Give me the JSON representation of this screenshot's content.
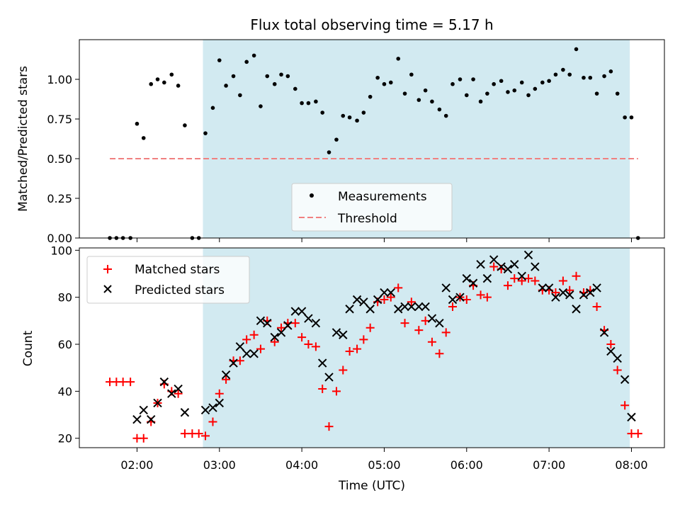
{
  "chart_data": [
    {
      "type": "scatter",
      "title": "Flux total observing time = 5.17 h",
      "ylabel": "Matched/Predicted stars",
      "xlabel": "",
      "x_unit": "hours UTC",
      "xlim": [
        1.3,
        8.4
      ],
      "ylim": [
        0,
        1.25
      ],
      "yticks": [
        "0.00",
        "0.25",
        "0.50",
        "0.75",
        "1.00"
      ],
      "ytick_values": [
        0,
        0.25,
        0.5,
        0.75,
        1.0
      ],
      "shaded_span": [
        2.8,
        7.98
      ],
      "shaded_color": "#add8e6",
      "legend_position": "lower-center",
      "threshold": {
        "name": "Threshold",
        "y": 0.5,
        "x_range": [
          1.67,
          8.08
        ],
        "color": "#f08080"
      },
      "series": [
        {
          "name": "Measurements",
          "color": "#000000",
          "points": [
            [
              1.67,
              0.0
            ],
            [
              1.75,
              0.0
            ],
            [
              1.83,
              0.0
            ],
            [
              1.92,
              0.0
            ],
            [
              2.0,
              0.72
            ],
            [
              2.08,
              0.63
            ],
            [
              2.17,
              0.97
            ],
            [
              2.25,
              1.0
            ],
            [
              2.33,
              0.98
            ],
            [
              2.42,
              1.03
            ],
            [
              2.5,
              0.96
            ],
            [
              2.58,
              0.71
            ],
            [
              2.67,
              0.0
            ],
            [
              2.75,
              0.0
            ],
            [
              2.83,
              0.66
            ],
            [
              2.92,
              0.82
            ],
            [
              3.0,
              1.12
            ],
            [
              3.08,
              0.96
            ],
            [
              3.17,
              1.02
            ],
            [
              3.25,
              0.9
            ],
            [
              3.33,
              1.11
            ],
            [
              3.42,
              1.15
            ],
            [
              3.5,
              0.83
            ],
            [
              3.58,
              1.02
            ],
            [
              3.67,
              0.97
            ],
            [
              3.75,
              1.03
            ],
            [
              3.83,
              1.02
            ],
            [
              3.92,
              0.94
            ],
            [
              4.0,
              0.85
            ],
            [
              4.08,
              0.85
            ],
            [
              4.17,
              0.86
            ],
            [
              4.25,
              0.79
            ],
            [
              4.33,
              0.54
            ],
            [
              4.42,
              0.62
            ],
            [
              4.5,
              0.77
            ],
            [
              4.58,
              0.76
            ],
            [
              4.67,
              0.74
            ],
            [
              4.75,
              0.79
            ],
            [
              4.83,
              0.89
            ],
            [
              4.92,
              1.01
            ],
            [
              5.0,
              0.97
            ],
            [
              5.08,
              0.98
            ],
            [
              5.17,
              1.13
            ],
            [
              5.25,
              0.91
            ],
            [
              5.33,
              1.03
            ],
            [
              5.42,
              0.87
            ],
            [
              5.5,
              0.93
            ],
            [
              5.58,
              0.86
            ],
            [
              5.67,
              0.81
            ],
            [
              5.75,
              0.77
            ],
            [
              5.83,
              0.97
            ],
            [
              5.92,
              1.0
            ],
            [
              6.0,
              0.9
            ],
            [
              6.08,
              1.0
            ],
            [
              6.17,
              0.86
            ],
            [
              6.25,
              0.91
            ],
            [
              6.33,
              0.97
            ],
            [
              6.42,
              0.99
            ],
            [
              6.5,
              0.92
            ],
            [
              6.58,
              0.93
            ],
            [
              6.67,
              0.98
            ],
            [
              6.75,
              0.9
            ],
            [
              6.83,
              0.94
            ],
            [
              6.92,
              0.98
            ],
            [
              7.0,
              0.99
            ],
            [
              7.08,
              1.03
            ],
            [
              7.17,
              1.06
            ],
            [
              7.25,
              1.03
            ],
            [
              7.33,
              1.19
            ],
            [
              7.42,
              1.01
            ],
            [
              7.5,
              1.01
            ],
            [
              7.58,
              0.91
            ],
            [
              7.67,
              1.02
            ],
            [
              7.75,
              1.05
            ],
            [
              7.83,
              0.91
            ],
            [
              7.92,
              0.76
            ],
            [
              8.0,
              0.76
            ],
            [
              8.08,
              0.0
            ]
          ]
        }
      ]
    },
    {
      "type": "scatter",
      "title": "",
      "ylabel": "Count",
      "xlabel": "Time (UTC)",
      "x_unit": "hours UTC",
      "xlim": [
        1.3,
        8.4
      ],
      "ylim": [
        16,
        101
      ],
      "yticks": [
        "20",
        "40",
        "60",
        "80",
        "100"
      ],
      "ytick_values": [
        20,
        40,
        60,
        80,
        100
      ],
      "xticks": [
        "02:00",
        "03:00",
        "04:00",
        "05:00",
        "06:00",
        "07:00",
        "08:00"
      ],
      "xtick_values": [
        2,
        3,
        4,
        5,
        6,
        7,
        8
      ],
      "shaded_span": [
        2.8,
        7.98
      ],
      "shaded_color": "#add8e6",
      "legend_position": "upper-left",
      "series": [
        {
          "name": "Matched stars",
          "marker": "plus",
          "color": "#ff0000",
          "points": [
            [
              1.67,
              44
            ],
            [
              1.75,
              44
            ],
            [
              1.83,
              44
            ],
            [
              1.92,
              44
            ],
            [
              2.0,
              20
            ],
            [
              2.08,
              20
            ],
            [
              2.17,
              27
            ],
            [
              2.25,
              35
            ],
            [
              2.33,
              43
            ],
            [
              2.42,
              40
            ],
            [
              2.5,
              39
            ],
            [
              2.58,
              22
            ],
            [
              2.67,
              22
            ],
            [
              2.75,
              22
            ],
            [
              2.83,
              21
            ],
            [
              2.92,
              27
            ],
            [
              3.0,
              39
            ],
            [
              3.08,
              45
            ],
            [
              3.17,
              53
            ],
            [
              3.25,
              53
            ],
            [
              3.33,
              62
            ],
            [
              3.42,
              64
            ],
            [
              3.5,
              58
            ],
            [
              3.58,
              70
            ],
            [
              3.67,
              61
            ],
            [
              3.75,
              67
            ],
            [
              3.83,
              69
            ],
            [
              3.92,
              69
            ],
            [
              4.0,
              63
            ],
            [
              4.08,
              60
            ],
            [
              4.17,
              59
            ],
            [
              4.25,
              41
            ],
            [
              4.33,
              25
            ],
            [
              4.42,
              40
            ],
            [
              4.5,
              49
            ],
            [
              4.58,
              57
            ],
            [
              4.67,
              58
            ],
            [
              4.75,
              62
            ],
            [
              4.83,
              67
            ],
            [
              4.92,
              78
            ],
            [
              5.0,
              79
            ],
            [
              5.08,
              80
            ],
            [
              5.17,
              84
            ],
            [
              5.25,
              69
            ],
            [
              5.33,
              78
            ],
            [
              5.42,
              66
            ],
            [
              5.5,
              70
            ],
            [
              5.58,
              61
            ],
            [
              5.67,
              56
            ],
            [
              5.75,
              65
            ],
            [
              5.83,
              76
            ],
            [
              5.92,
              80
            ],
            [
              6.0,
              79
            ],
            [
              6.08,
              85
            ],
            [
              6.17,
              81
            ],
            [
              6.25,
              80
            ],
            [
              6.33,
              93
            ],
            [
              6.42,
              92
            ],
            [
              6.5,
              85
            ],
            [
              6.58,
              88
            ],
            [
              6.67,
              87
            ],
            [
              6.75,
              88
            ],
            [
              6.83,
              87
            ],
            [
              6.92,
              83
            ],
            [
              7.0,
              83
            ],
            [
              7.08,
              82
            ],
            [
              7.17,
              87
            ],
            [
              7.25,
              83
            ],
            [
              7.33,
              89
            ],
            [
              7.42,
              82
            ],
            [
              7.5,
              83
            ],
            [
              7.58,
              76
            ],
            [
              7.67,
              66
            ],
            [
              7.75,
              60
            ],
            [
              7.83,
              49
            ],
            [
              7.92,
              34
            ],
            [
              8.0,
              22
            ],
            [
              8.08,
              22
            ]
          ]
        },
        {
          "name": "Predicted stars",
          "marker": "x",
          "color": "#000000",
          "points": [
            [
              2.0,
              28
            ],
            [
              2.08,
              32
            ],
            [
              2.17,
              28
            ],
            [
              2.25,
              35
            ],
            [
              2.33,
              44
            ],
            [
              2.42,
              39
            ],
            [
              2.5,
              41
            ],
            [
              2.58,
              31
            ],
            [
              2.83,
              32
            ],
            [
              2.92,
              33
            ],
            [
              3.0,
              35
            ],
            [
              3.08,
              47
            ],
            [
              3.17,
              52
            ],
            [
              3.25,
              59
            ],
            [
              3.33,
              56
            ],
            [
              3.42,
              56
            ],
            [
              3.5,
              70
            ],
            [
              3.58,
              69
            ],
            [
              3.67,
              63
            ],
            [
              3.75,
              65
            ],
            [
              3.83,
              68
            ],
            [
              3.92,
              74
            ],
            [
              4.0,
              74
            ],
            [
              4.08,
              71
            ],
            [
              4.17,
              69
            ],
            [
              4.25,
              52
            ],
            [
              4.33,
              46
            ],
            [
              4.42,
              65
            ],
            [
              4.5,
              64
            ],
            [
              4.58,
              75
            ],
            [
              4.67,
              79
            ],
            [
              4.75,
              78
            ],
            [
              4.83,
              75
            ],
            [
              4.92,
              79
            ],
            [
              5.0,
              82
            ],
            [
              5.08,
              82
            ],
            [
              5.17,
              75
            ],
            [
              5.25,
              76
            ],
            [
              5.33,
              76
            ],
            [
              5.42,
              76
            ],
            [
              5.5,
              76
            ],
            [
              5.58,
              71
            ],
            [
              5.67,
              69
            ],
            [
              5.75,
              84
            ],
            [
              5.83,
              79
            ],
            [
              5.92,
              80
            ],
            [
              6.0,
              88
            ],
            [
              6.08,
              86
            ],
            [
              6.17,
              94
            ],
            [
              6.25,
              88
            ],
            [
              6.33,
              96
            ],
            [
              6.42,
              93
            ],
            [
              6.5,
              92
            ],
            [
              6.58,
              94
            ],
            [
              6.67,
              89
            ],
            [
              6.75,
              98
            ],
            [
              6.83,
              93
            ],
            [
              6.92,
              84
            ],
            [
              7.0,
              84
            ],
            [
              7.08,
              80
            ],
            [
              7.17,
              82
            ],
            [
              7.25,
              81
            ],
            [
              7.33,
              75
            ],
            [
              7.42,
              81
            ],
            [
              7.5,
              82
            ],
            [
              7.58,
              84
            ],
            [
              7.67,
              65
            ],
            [
              7.75,
              57
            ],
            [
              7.83,
              54
            ],
            [
              7.92,
              45
            ],
            [
              8.0,
              29
            ]
          ]
        }
      ]
    }
  ]
}
